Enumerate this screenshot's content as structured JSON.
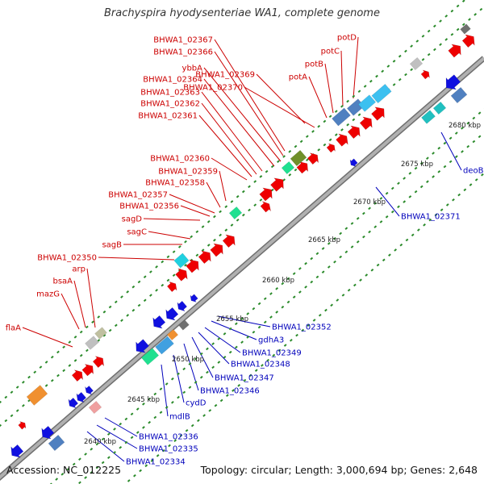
{
  "title": "Brachyspira hyodysenteriae WA1, complete genome",
  "footer": {
    "accession": "Accession: NC_012225",
    "summary": "Topology: circular; Length: 3,000,694 bp; Genes: 2,648"
  },
  "colors": {
    "forward_gene": "#ee0000",
    "reverse_gene": "#0000dd",
    "forward_label": "#cc0000",
    "reverse_label": "#0000bb",
    "backbone": "#909090",
    "tick": "#2a8a2a"
  },
  "ticks": [
    "2640 kbp",
    "2645 kbp",
    "2650 kbp",
    "2655 kbp",
    "2660 kbp",
    "2665 kbp",
    "2670 kbp",
    "2675 kbp",
    "2680 kbp"
  ],
  "forward_labels": [
    "BHWA1_02367",
    "BHWA1_02366",
    "ybbA",
    "BHWA1_02364",
    "BHWA1_02363",
    "BHWA1_02362",
    "BHWA1_02361",
    "BHWA1_02360",
    "BHWA1_02359",
    "BHWA1_02358",
    "BHWA1_02357",
    "BHWA1_02356",
    "sagD",
    "sagC",
    "sagB",
    "BHWA1_02350",
    "arp",
    "bsaA",
    "mazG",
    "flaA",
    "potD",
    "potC",
    "potB",
    "potA",
    "BHWA1_02369",
    "BHWA1_02370"
  ],
  "reverse_labels": [
    "deoB",
    "BHWA1_02371",
    "BHWA1_02352",
    "gdhA3",
    "BHWA1_02349",
    "BHWA1_02348",
    "BHWA1_02347",
    "BHWA1_02346",
    "cydD",
    "mdlB",
    "BHWA1_02336",
    "BHWA1_02335",
    "BHWA1_02334"
  ]
}
